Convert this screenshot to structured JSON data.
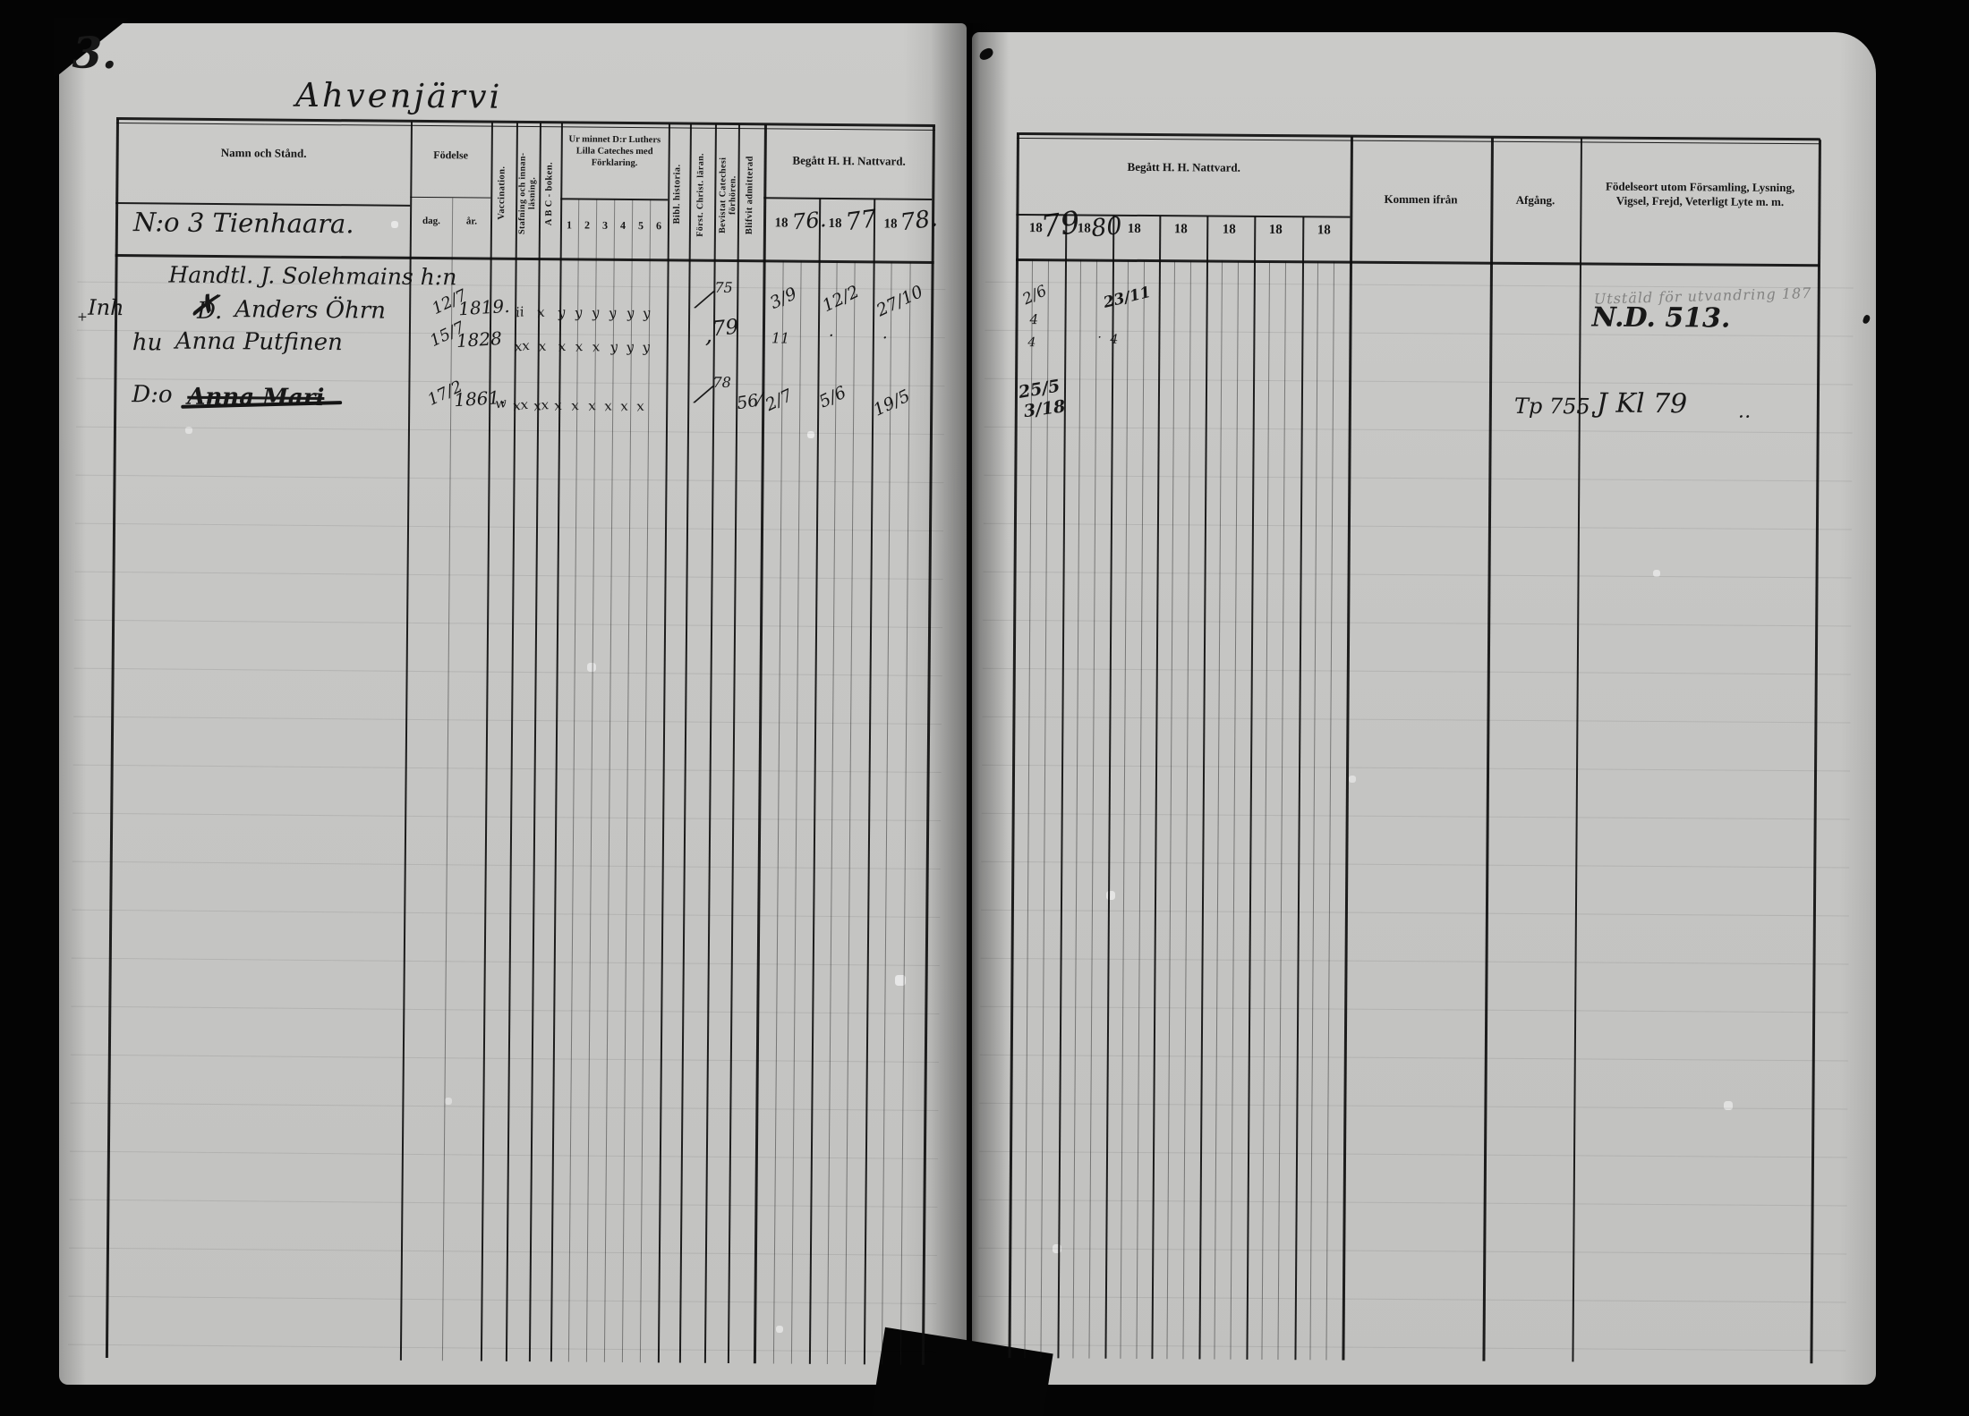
{
  "scan": {
    "page_number": "3.",
    "title": "Ahvenjärvi",
    "left_table": {
      "col_name": "Namn och Stånd.",
      "village_line": "N:o 3 Tienhaara.",
      "col_birth": "Födelse",
      "birth_day_label": "dag.",
      "birth_year_label": "år.",
      "col_vaccination": "Vaccination.",
      "col_spelling_1": "Stafning och innan-",
      "col_spelling_2": "läsning.",
      "col_abc": "A B C - boken.",
      "col_catechism_1": "Ur minnet D:r Luthers",
      "col_catechism_2": "Lilla Cateches med",
      "col_catechism_3": "Förklaring.",
      "catechism_cols": [
        "1",
        "2",
        "3",
        "4",
        "5",
        "6"
      ],
      "col_bible_history": "Bibl. historia.",
      "col_christ_doctrine": "Först. Christ. läran.",
      "col_meetings_1": "Bevistat Catechesi",
      "col_meetings_2": "förhören.",
      "col_admitted": "Blifvit admitterad",
      "col_communion": "Begått H. H. Nattvard.",
      "years": [
        {
          "printed": "18",
          "written": "76."
        },
        {
          "printed": "18",
          "written": "77"
        },
        {
          "printed": "18",
          "written": "78."
        }
      ],
      "rows": [
        {
          "name": "Handtl. J. Solehmains h:n"
        },
        {
          "margin_mark": "+",
          "margin": "Inh",
          "prefix": "D.",
          "strike": "✗",
          "name": "Anders Öhrn",
          "birth_day": "12/7",
          "birth_year": "1819.",
          "marks": [
            "ii",
            "x",
            "y",
            "y",
            "y",
            "y",
            "y",
            "y"
          ],
          "attended": "⁄",
          "admitted": "75",
          "y1876": "3/9",
          "y1877": "12/2",
          "y1878": "27/10"
        },
        {
          "prefix": "hu",
          "name": "Anna Putfinen",
          "birth_day": "15/7",
          "birth_year": "1828",
          "marks": [
            "xx",
            "x",
            "x",
            "x",
            "x",
            "y",
            "y",
            "y"
          ],
          "attended": ",",
          "admitted": "79",
          "y1876": "11",
          "y1877": "·",
          "y1878": "·"
        },
        {
          "prefix": "D:o",
          "name": "Anna Mari",
          "birth_day": "17/2",
          "birth_year": "1861.",
          "vaccination": "w",
          "marks": [
            "xx",
            "xx",
            "x",
            "x",
            "x",
            "x",
            "x",
            "x"
          ],
          "attended": "⁄",
          "admitted": "78",
          "extra": "56⁄",
          "y1876": "2/7",
          "y1877": "5/6",
          "y1878": "19/5"
        }
      ]
    },
    "right_table": {
      "col_communion": "Begått H. H. Nattvard.",
      "years": [
        {
          "printed": "18",
          "written": "79"
        },
        {
          "printed": "18",
          "written": "80"
        },
        {
          "printed": "18",
          "written": ""
        },
        {
          "printed": "18",
          "written": ""
        },
        {
          "printed": "18",
          "written": ""
        },
        {
          "printed": "18",
          "written": ""
        },
        {
          "printed": "18",
          "written": ""
        }
      ],
      "col_come_from": "Kommen ifrån",
      "col_departure": "Afgång.",
      "col_remarks_1": "Födelseort utom Församling, Lysning,",
      "col_remarks_2": "Vigsel, Frejd, Veterligt Lyte m. m.",
      "entries": {
        "r2_1879": "2/6",
        "r3_1879": "4",
        "r3b_1879": "4",
        "r4_1879_a": "25/5",
        "r4_1879_b": "3/18",
        "r2_1880": "23/11",
        "r3_1880": "4",
        "r3_1880_dot": "·",
        "pencil_note": "Utstäld för utvandring 187",
        "record_ref": "N.D. 513.",
        "departure_r4": "Tp  755.",
        "remark_r4": "J Kl 79",
        "remark_r4_dash": "‥"
      }
    }
  }
}
